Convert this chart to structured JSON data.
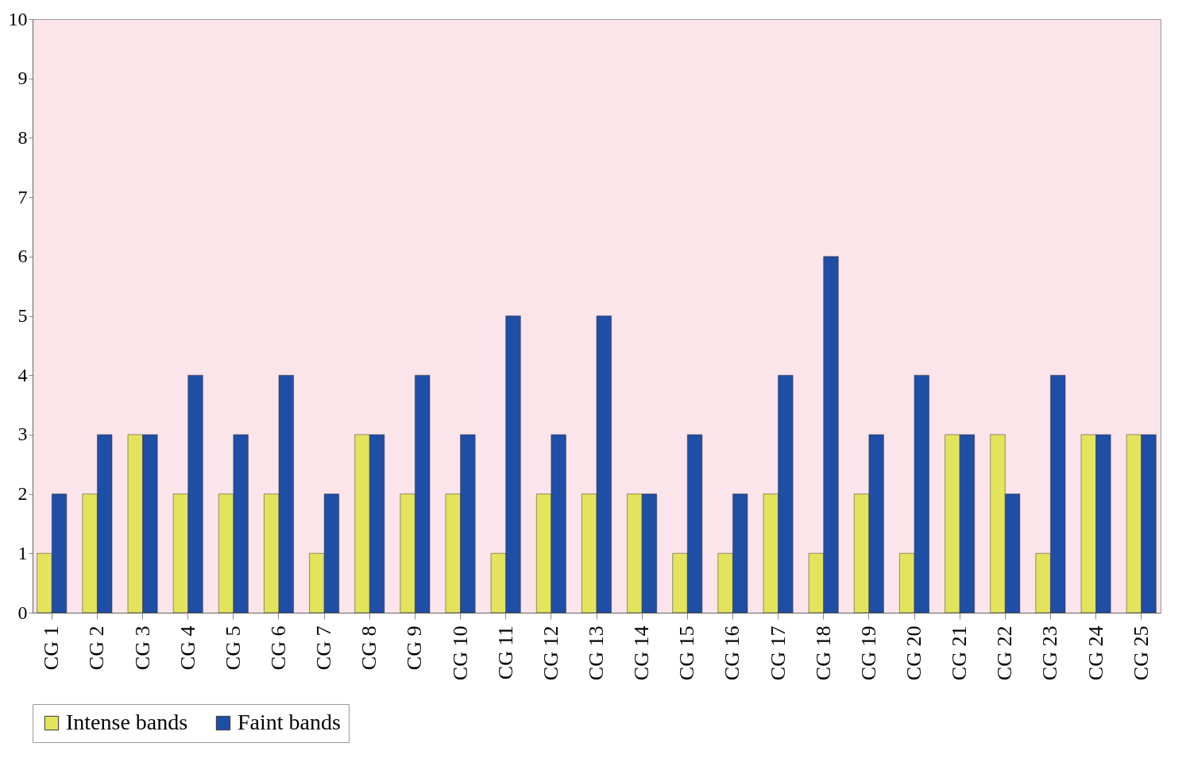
{
  "chart_data": {
    "type": "bar",
    "categories": [
      "CG 1",
      "CG 2",
      "CG 3",
      "CG 4",
      "CG 5",
      "CG 6",
      "CG 7",
      "CG 8",
      "CG 9",
      "CG 10",
      "CG 11",
      "CG 12",
      "CG 13",
      "CG 14",
      "CG 15",
      "CG 16",
      "CG 17",
      "CG 18",
      "CG 19",
      "CG 20",
      "CG 21",
      "CG 22",
      "CG 23",
      "CG 24",
      "CG 25"
    ],
    "series": [
      {
        "name": "Intense bands",
        "color": "#e4e45c",
        "values": [
          1,
          2,
          3,
          2,
          2,
          2,
          1,
          3,
          2,
          2,
          1,
          2,
          2,
          2,
          1,
          1,
          2,
          1,
          2,
          1,
          3,
          3,
          1,
          3,
          3
        ]
      },
      {
        "name": "Faint bands",
        "color": "#1f4ea6",
        "values": [
          2,
          3,
          3,
          4,
          3,
          4,
          2,
          3,
          4,
          3,
          5,
          3,
          5,
          2,
          3,
          2,
          4,
          6,
          3,
          4,
          3,
          2,
          4,
          3,
          3
        ]
      }
    ],
    "ylim": [
      0,
      10
    ],
    "yticks": [
      0,
      1,
      2,
      3,
      4,
      5,
      6,
      7,
      8,
      9,
      10
    ],
    "legend": "bottom"
  }
}
